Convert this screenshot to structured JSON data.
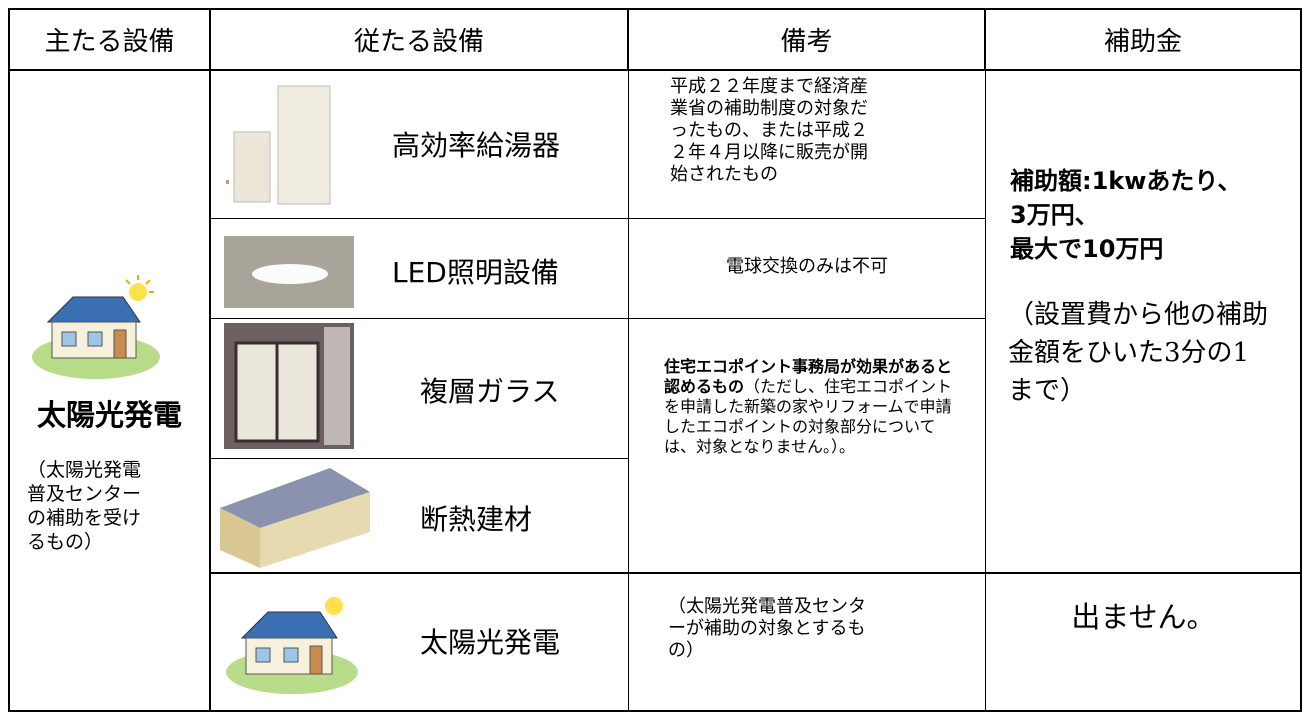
{
  "table": {
    "header": [
      "主たる設備",
      "従たる設備",
      "備考",
      "補助金"
    ],
    "main_equipment": {
      "name": "太陽光発電",
      "note": "（太陽光発電普及センターの補助を受けるもの）"
    },
    "rows": [
      {
        "equipment": "高効率給湯器",
        "remark": "平成２２年度まで経済産業省の補助制度の対象だったもの、または平成２２年４月以降に販売が開始されたもの"
      },
      {
        "equipment": "LED照明設備",
        "remark": "電球交換のみは不可"
      },
      {
        "equipment": "複層ガラス"
      },
      {
        "equipment": "断熱建材"
      },
      {
        "equipment": "太陽光発電",
        "remark": "（太陽光発電普及センターが補助の対象とするもの）"
      }
    ],
    "shared_remark": {
      "bold": "住宅エコポイント事務局が効果があると認めるもの",
      "normal": "（ただし、住宅エコポイントを申請した新築の家やリフォームで申請したエコポイントの対象部分については、対象となりません。）。"
    },
    "subsidy": {
      "lines": [
        "補助額:1kwあたり、",
        "3万円、",
        "最大で10万円"
      ],
      "note": "（設置費から他の補助金額をひいた3分の1まで）"
    },
    "no_subsidy": "出ません。"
  }
}
